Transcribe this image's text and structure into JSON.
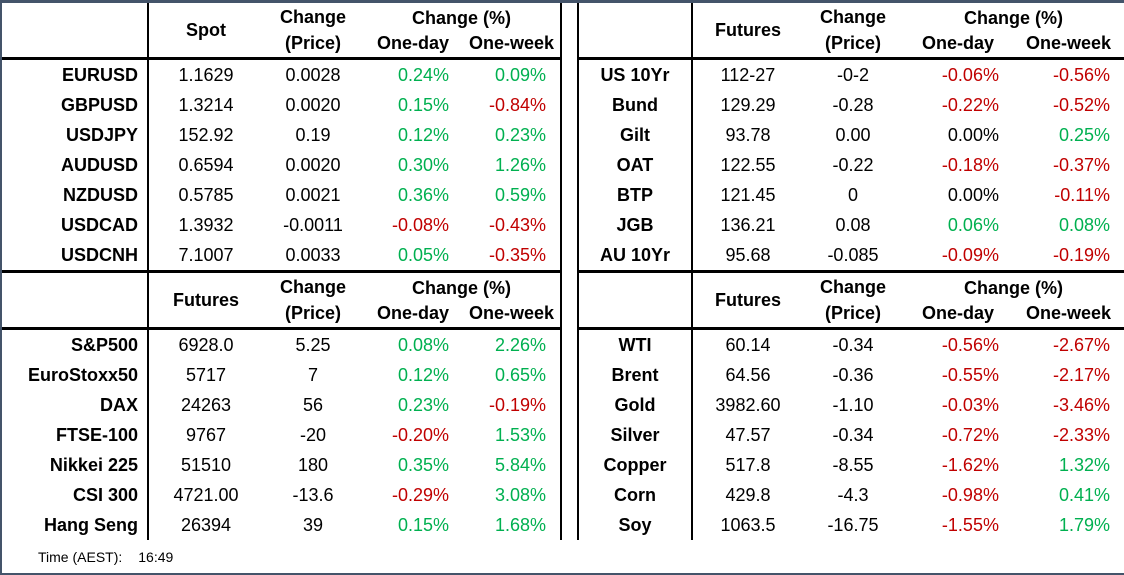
{
  "colors": {
    "positive": "#00B050",
    "negative": "#C00000",
    "neutral": "#000000",
    "grid_line": "#000000",
    "frame": "#44546A"
  },
  "footer": {
    "time_label": "Time (AEST):",
    "time_value": "16:49"
  },
  "tables": {
    "fx": {
      "value_header": "Spot",
      "change_header": "Change",
      "change_sub": "(Price)",
      "pct_header": "Change (%)",
      "one_day_header": "One-day",
      "one_week_header": "One-week",
      "rows": [
        {
          "label": "EURUSD",
          "value": "1.1629",
          "change": "0.0028",
          "one_day": "0.24%",
          "one_week": "0.09%"
        },
        {
          "label": "GBPUSD",
          "value": "1.3214",
          "change": "0.0020",
          "one_day": "0.15%",
          "one_week": "-0.84%"
        },
        {
          "label": "USDJPY",
          "value": "152.92",
          "change": "0.19",
          "one_day": "0.12%",
          "one_week": "0.23%"
        },
        {
          "label": "AUDUSD",
          "value": "0.6594",
          "change": "0.0020",
          "one_day": "0.30%",
          "one_week": "1.26%"
        },
        {
          "label": "NZDUSD",
          "value": "0.5785",
          "change": "0.0021",
          "one_day": "0.36%",
          "one_week": "0.59%"
        },
        {
          "label": "USDCAD",
          "value": "1.3932",
          "change": "-0.0011",
          "one_day": "-0.08%",
          "one_week": "-0.43%"
        },
        {
          "label": "USDCNH",
          "value": "7.1007",
          "change": "0.0033",
          "one_day": "0.05%",
          "one_week": "-0.35%"
        }
      ]
    },
    "bonds": {
      "value_header": "Futures",
      "change_header": "Change",
      "change_sub": "(Price)",
      "pct_header": "Change (%)",
      "one_day_header": "One-day",
      "one_week_header": "One-week",
      "rows": [
        {
          "label": "US 10Yr",
          "value": "112-27",
          "change": "-0-2",
          "one_day": "-0.06%",
          "one_week": "-0.56%"
        },
        {
          "label": "Bund",
          "value": "129.29",
          "change": "-0.28",
          "one_day": "-0.22%",
          "one_week": "-0.52%"
        },
        {
          "label": "Gilt",
          "value": "93.78",
          "change": "0.00",
          "one_day": "0.00%",
          "one_week": "0.25%"
        },
        {
          "label": "OAT",
          "value": "122.55",
          "change": "-0.22",
          "one_day": "-0.18%",
          "one_week": "-0.37%"
        },
        {
          "label": "BTP",
          "value": "121.45",
          "change": "0",
          "one_day": "0.00%",
          "one_week": "-0.11%"
        },
        {
          "label": "JGB",
          "value": "136.21",
          "change": "0.08",
          "one_day": "0.06%",
          "one_week": "0.08%"
        },
        {
          "label": "AU 10Yr",
          "value": "95.68",
          "change": "-0.085",
          "one_day": "-0.09%",
          "one_week": "-0.19%"
        }
      ]
    },
    "equities": {
      "value_header": "Futures",
      "change_header": "Change",
      "change_sub": "(Price)",
      "pct_header": "Change (%)",
      "one_day_header": "One-day",
      "one_week_header": "One-week",
      "rows": [
        {
          "label": "S&P500",
          "value": "6928.0",
          "change": "5.25",
          "one_day": "0.08%",
          "one_week": "2.26%"
        },
        {
          "label": "EuroStoxx50",
          "value": "5717",
          "change": "7",
          "one_day": "0.12%",
          "one_week": "0.65%"
        },
        {
          "label": "DAX",
          "value": "24263",
          "change": "56",
          "one_day": "0.23%",
          "one_week": "-0.19%"
        },
        {
          "label": "FTSE-100",
          "value": "9767",
          "change": "-20",
          "one_day": "-0.20%",
          "one_week": "1.53%"
        },
        {
          "label": "Nikkei 225",
          "value": "51510",
          "change": "180",
          "one_day": "0.35%",
          "one_week": "5.84%"
        },
        {
          "label": "CSI 300",
          "value": "4721.00",
          "change": "-13.6",
          "one_day": "-0.29%",
          "one_week": "3.08%"
        },
        {
          "label": "Hang Seng",
          "value": "26394",
          "change": "39",
          "one_day": "0.15%",
          "one_week": "1.68%"
        }
      ]
    },
    "commodities": {
      "value_header": "Futures",
      "change_header": "Change",
      "change_sub": "(Price)",
      "pct_header": "Change (%)",
      "one_day_header": "One-day",
      "one_week_header": "One-week",
      "rows": [
        {
          "label": "WTI",
          "value": "60.14",
          "change": "-0.34",
          "one_day": "-0.56%",
          "one_week": "-2.67%"
        },
        {
          "label": "Brent",
          "value": "64.56",
          "change": "-0.36",
          "one_day": "-0.55%",
          "one_week": "-2.17%"
        },
        {
          "label": "Gold",
          "value": "3982.60",
          "change": "-1.10",
          "one_day": "-0.03%",
          "one_week": "-3.46%"
        },
        {
          "label": "Silver",
          "value": "47.57",
          "change": "-0.34",
          "one_day": "-0.72%",
          "one_week": "-2.33%"
        },
        {
          "label": "Copper",
          "value": "517.8",
          "change": "-8.55",
          "one_day": "-1.62%",
          "one_week": "1.32%"
        },
        {
          "label": "Corn",
          "value": "429.8",
          "change": "-4.3",
          "one_day": "-0.98%",
          "one_week": "0.41%"
        },
        {
          "label": "Soy",
          "value": "1063.5",
          "change": "-16.75",
          "one_day": "-1.55%",
          "one_week": "1.79%"
        }
      ]
    }
  }
}
